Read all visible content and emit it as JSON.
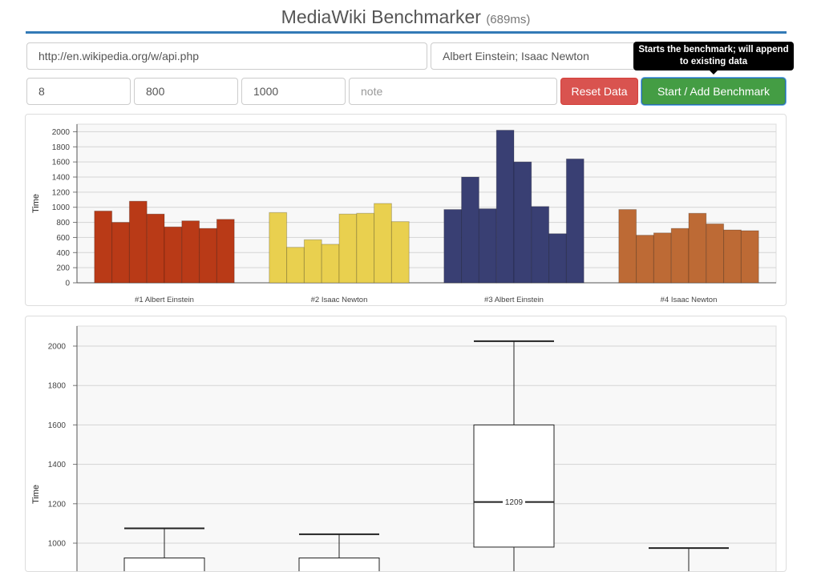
{
  "header": {
    "title": "MediaWiki Benchmarker",
    "timing": "(689ms)"
  },
  "form": {
    "api_url": "http://en.wikipedia.org/w/api.php",
    "titles": "Albert Einstein; Isaac Newton",
    "field_1": "8",
    "field_2": "800",
    "field_3": "1000",
    "note_placeholder": "note",
    "reset_label": "Reset Data",
    "start_label": "Start / Add Benchmark",
    "start_tooltip_line1": "Starts the benchmark; will append",
    "start_tooltip_line2": "to existing data"
  },
  "colors": {
    "accent": "#337ab7",
    "series": [
      "#b93a17",
      "#e9d04f",
      "#393f73",
      "#bd6a35"
    ]
  },
  "chart_data": [
    {
      "type": "bar",
      "ylabel": "Time",
      "ylim": [
        0,
        2100
      ],
      "yticks": [
        0,
        200,
        400,
        600,
        800,
        1000,
        1200,
        1400,
        1600,
        1800,
        2000
      ],
      "grid": true,
      "groups": [
        {
          "label": "#1 Albert Einstein",
          "values": [
            950,
            800,
            1080,
            910,
            740,
            820,
            720,
            840
          ]
        },
        {
          "label": "#2 Isaac Newton",
          "values": [
            930,
            470,
            570,
            510,
            910,
            920,
            1050,
            810
          ]
        },
        {
          "label": "#3 Albert Einstein",
          "values": [
            970,
            1400,
            980,
            2020,
            1600,
            1010,
            650,
            1640
          ]
        },
        {
          "label": "#4 Isaac Newton",
          "values": [
            970,
            630,
            660,
            720,
            920,
            780,
            700,
            690
          ]
        }
      ]
    },
    {
      "type": "box",
      "ylabel": "Time",
      "ylim": [
        900,
        2100
      ],
      "yticks": [
        1000,
        1200,
        1400,
        1600,
        1800,
        2000
      ],
      "grid": true,
      "boxes": [
        {
          "max": 1075,
          "q3": 925
        },
        {
          "max": 1045,
          "q3": 925
        },
        {
          "max": 2025,
          "q3": 1600,
          "median": 1209,
          "median_label": "1209",
          "q1": 980
        },
        {
          "max": 975
        }
      ]
    }
  ]
}
